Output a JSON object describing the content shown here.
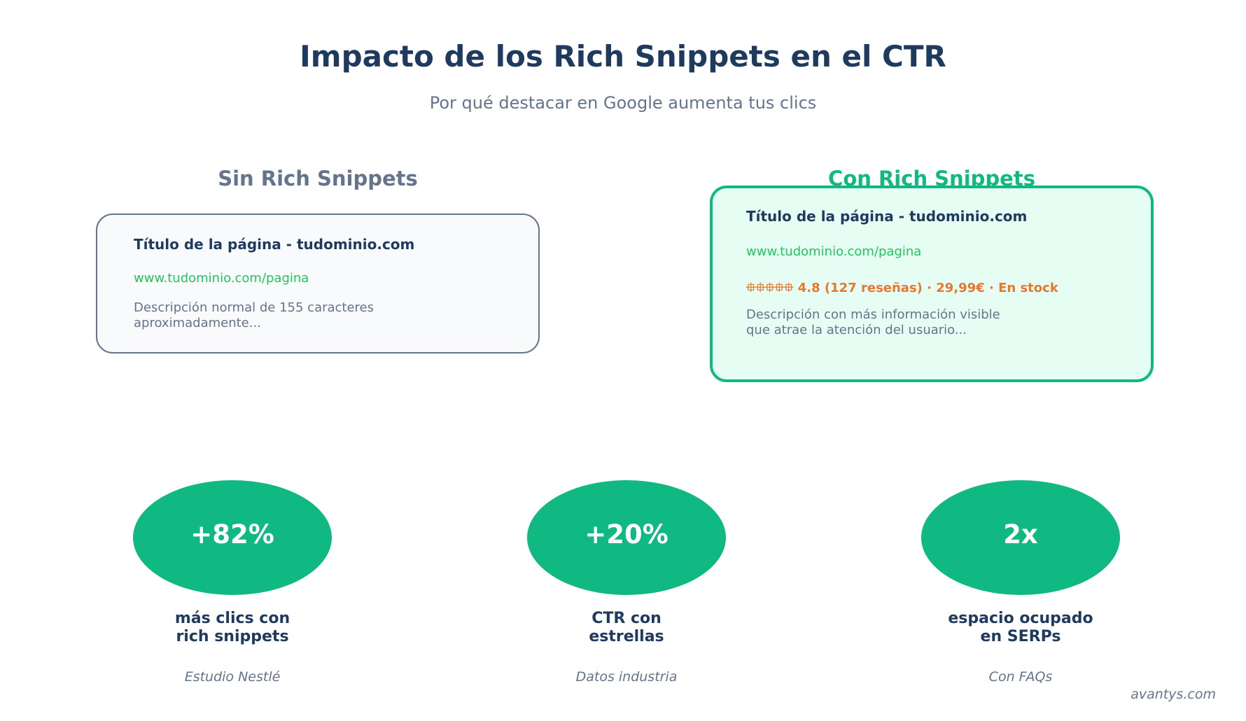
{
  "header": {
    "title": "Impacto de los Rich Snippets en el CTR",
    "subtitle": "Por qué destacar en Google aumenta tus clics"
  },
  "comparison": {
    "without": {
      "heading": "Sin Rich Snippets",
      "result_title": "Título de la página - tudominio.com",
      "result_url": "www.tudominio.com/pagina",
      "result_description": "Descripción normal de 155 caracteres\naproximadamente..."
    },
    "with": {
      "heading": "Con Rich Snippets",
      "result_title": "Título de la página - tudominio.com",
      "result_url": "www.tudominio.com/pagina",
      "result_rating": "⯐⯐⯐⯐⯐ 4.8 (127 reseñas) · 29,99€ · En stock",
      "result_description": "Descripción con más información visible\nque atrae la atención del usuario..."
    }
  },
  "stats": [
    {
      "value": "+82%",
      "label": "más clics con\nrich snippets",
      "source": "Estudio Nestlé"
    },
    {
      "value": "+20%",
      "label": "CTR con\nestrellas",
      "source": "Datos industria"
    },
    {
      "value": "2x",
      "label": "espacio ocupado\nen SERPs",
      "source": "Con FAQs"
    }
  ],
  "footer": {
    "watermark": "avantys.com"
  },
  "colors": {
    "primary_dark": "#1e3a5f",
    "accent_green": "#10b981",
    "url_green": "#22c55e",
    "muted_gray": "#64748b",
    "rating_orange": "#e8772e"
  }
}
